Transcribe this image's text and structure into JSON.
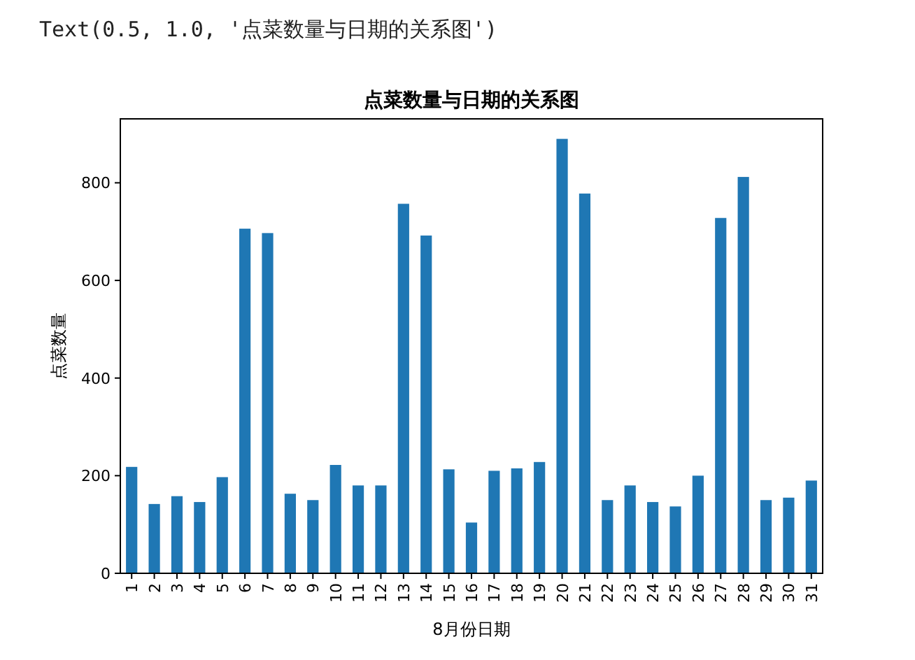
{
  "chart_data": {
    "type": "bar",
    "title": "点菜数量与日期的关系图",
    "xlabel": "8月份日期",
    "ylabel": "点菜数量",
    "annotations": [
      "Text(0.5, 1.0, '点菜数量与日期的关系图')"
    ],
    "categories": [
      "1",
      "2",
      "3",
      "4",
      "5",
      "6",
      "7",
      "8",
      "9",
      "10",
      "11",
      "12",
      "13",
      "14",
      "15",
      "16",
      "17",
      "18",
      "19",
      "20",
      "21",
      "22",
      "23",
      "24",
      "25",
      "26",
      "27",
      "28",
      "29",
      "30",
      "31"
    ],
    "values": [
      218,
      142,
      158,
      146,
      197,
      706,
      697,
      163,
      150,
      222,
      180,
      180,
      757,
      692,
      213,
      104,
      210,
      215,
      228,
      890,
      778,
      150,
      180,
      146,
      137,
      200,
      728,
      812,
      150,
      155,
      190
    ],
    "color": "#1f77b4",
    "ylim": [
      0,
      931
    ],
    "yticks": [
      0,
      200,
      400,
      600,
      800
    ],
    "grid": false
  }
}
